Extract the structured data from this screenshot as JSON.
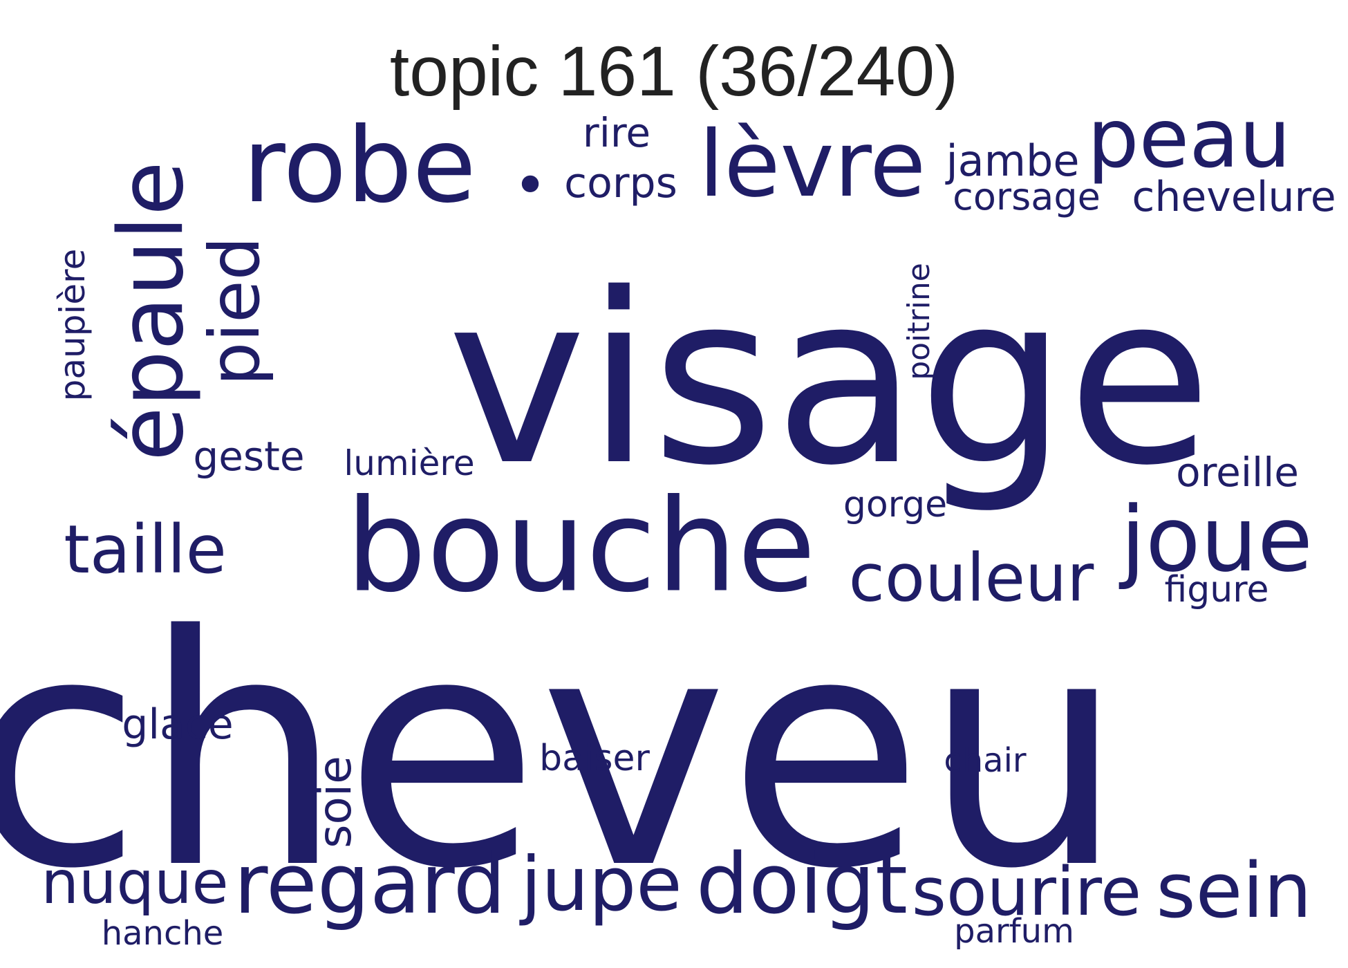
{
  "title": "topic 161 (36/240)",
  "color": "#1f1d66",
  "words": [
    {
      "text": "cheveu"
    },
    {
      "text": "visage"
    },
    {
      "text": "bouche"
    },
    {
      "text": "robe"
    },
    {
      "text": "lèvre"
    },
    {
      "text": "peau"
    },
    {
      "text": "épaule",
      "vertical": true
    },
    {
      "text": "pied",
      "vertical": true
    },
    {
      "text": "joue"
    },
    {
      "text": "couleur"
    },
    {
      "text": "regard"
    },
    {
      "text": "doigt"
    },
    {
      "text": "sein"
    },
    {
      "text": "jupe"
    },
    {
      "text": "sourire"
    },
    {
      "text": "nuque"
    },
    {
      "text": "taille"
    },
    {
      "text": "•"
    },
    {
      "text": "corps"
    },
    {
      "text": "rire"
    },
    {
      "text": "jambe"
    },
    {
      "text": "corsage"
    },
    {
      "text": "chevelure"
    },
    {
      "text": "paupière",
      "vertical": true
    },
    {
      "text": "poitrine",
      "vertical": true
    },
    {
      "text": "geste"
    },
    {
      "text": "lumière"
    },
    {
      "text": "gorge"
    },
    {
      "text": "oreille"
    },
    {
      "text": "figure"
    },
    {
      "text": "glace"
    },
    {
      "text": "soie",
      "vertical": true
    },
    {
      "text": "baiser"
    },
    {
      "text": "chair"
    },
    {
      "text": "hanche"
    },
    {
      "text": "parfum"
    }
  ]
}
